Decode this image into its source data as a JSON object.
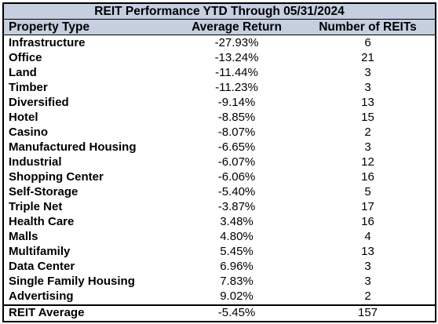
{
  "chart_data": {
    "type": "table",
    "title": "REIT Performance YTD Through 05/31/2024",
    "columns": [
      "Property Type",
      "Average Return",
      "Number of REITs"
    ],
    "rows": [
      {
        "type": "Infrastructure",
        "return": "-27.93%",
        "count": "6"
      },
      {
        "type": "Office",
        "return": "-13.24%",
        "count": "21"
      },
      {
        "type": "Land",
        "return": "-11.44%",
        "count": "3"
      },
      {
        "type": "Timber",
        "return": "-11.23%",
        "count": "3"
      },
      {
        "type": "Diversified",
        "return": "-9.14%",
        "count": "13"
      },
      {
        "type": "Hotel",
        "return": "-8.85%",
        "count": "15"
      },
      {
        "type": "Casino",
        "return": "-8.07%",
        "count": "2"
      },
      {
        "type": "Manufactured Housing",
        "return": "-6.65%",
        "count": "3"
      },
      {
        "type": "Industrial",
        "return": "-6.07%",
        "count": "12"
      },
      {
        "type": "Shopping Center",
        "return": "-6.06%",
        "count": "16"
      },
      {
        "type": "Self-Storage",
        "return": "-5.40%",
        "count": "5"
      },
      {
        "type": "Triple Net",
        "return": "-3.87%",
        "count": "17"
      },
      {
        "type": "Health Care",
        "return": "3.48%",
        "count": "16"
      },
      {
        "type": "Malls",
        "return": "4.80%",
        "count": "4"
      },
      {
        "type": "Multifamily",
        "return": "5.45%",
        "count": "13"
      },
      {
        "type": "Data Center",
        "return": "6.96%",
        "count": "3"
      },
      {
        "type": "Single Family Housing",
        "return": "7.83%",
        "count": "3"
      },
      {
        "type": "Advertising",
        "return": "9.02%",
        "count": "2"
      }
    ],
    "average": {
      "type": "REIT Average",
      "return": "-5.45%",
      "count": "157"
    },
    "header_color": "#c5cfe0"
  }
}
